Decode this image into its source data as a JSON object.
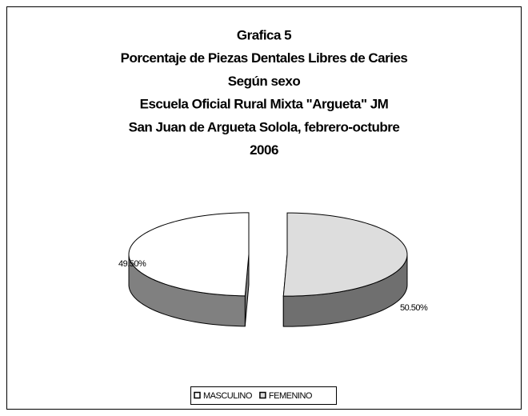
{
  "chart_data": {
    "type": "pie",
    "title": [
      "Grafica 5",
      "Porcentaje de Piezas Dentales Libres de Caries",
      "Según sexo",
      "Escuela Oficial Rural Mixta \"Argueta\" JM",
      "San Juan de Argueta Solola, febrero-octubre",
      "2006"
    ],
    "categories": [
      "MASCULINO",
      "FEMENINO"
    ],
    "values": [
      49.5,
      50.5
    ],
    "value_labels": [
      "49.50%",
      "50.50%"
    ],
    "colors": [
      "#ffffff",
      "#dddddd"
    ],
    "legend": "bottom"
  }
}
